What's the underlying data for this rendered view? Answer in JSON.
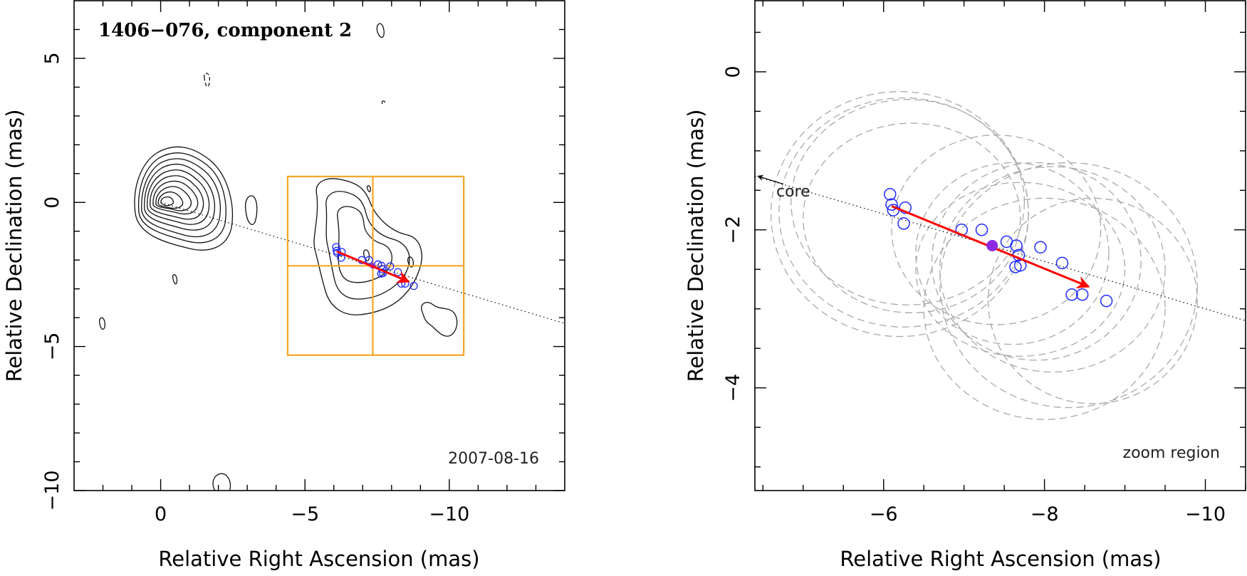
{
  "chart_data": [
    {
      "type": "scatter",
      "panel": "left",
      "title": "1406−076, component 2",
      "date_label": "2007-08-16",
      "xlabel": "Relative Right Ascension (mas)",
      "ylabel": "Relative Declination (mas)",
      "xlim": [
        3,
        -14
      ],
      "ylim": [
        -10,
        7
      ],
      "xticks": [
        0,
        -5,
        -10
      ],
      "xtick_labels": [
        "0",
        "−5",
        "−10"
      ],
      "yticks": [
        5,
        0,
        -5,
        -10
      ],
      "ytick_labels": [
        "5",
        "0",
        "−5",
        "−10"
      ],
      "zoom_box": {
        "x_min": -4.4,
        "x_max": -10.5,
        "y_min": -5.3,
        "y_max": 0.9,
        "center": [
          -7.35,
          -2.2
        ]
      },
      "trajectory_line": {
        "from": [
          0,
          0
        ],
        "to": [
          -14,
          -4.2
        ]
      },
      "motion_vector": {
        "from": [
          -6.1,
          -1.7
        ],
        "to": [
          -8.6,
          -2.75
        ]
      },
      "fitted_positions": {
        "x": [
          -6.08,
          -6.1,
          -6.12,
          -6.27,
          -6.25,
          -6.97,
          -7.22,
          -7.53,
          -7.65,
          -7.68,
          -7.64,
          -7.7,
          -7.95,
          -8.22,
          -8.34,
          -8.47,
          -8.77
        ],
        "y": [
          -1.55,
          -1.68,
          -1.75,
          -1.72,
          -1.92,
          -2.0,
          -2.0,
          -2.15,
          -2.2,
          -2.32,
          -2.47,
          -2.45,
          -2.22,
          -2.42,
          -2.82,
          -2.82,
          -2.9
        ]
      },
      "mean_position": [
        -7.35,
        -2.2
      ]
    },
    {
      "type": "scatter",
      "panel": "right",
      "annotation_core": "core",
      "annotation_zoom": "zoom region",
      "xlabel": "Relative Right Ascension (mas)",
      "ylabel": "Relative Declination (mas)",
      "xlim": [
        -4.4,
        -10.5
      ],
      "ylim": [
        -5.3,
        0.9
      ],
      "xticks": [
        -6,
        -8,
        -10
      ],
      "xtick_labels": [
        "−6",
        "−8",
        "−10"
      ],
      "yticks": [
        0,
        -2,
        -4
      ],
      "ytick_labels": [
        "0",
        "−2",
        "−4"
      ],
      "trajectory_line": {
        "from": [
          -4.4,
          -1.32
        ],
        "to": [
          -10.5,
          -3.15
        ]
      },
      "core_direction_arrow": {
        "from": [
          -4.75,
          -1.42
        ],
        "to": [
          -4.4,
          -1.32
        ]
      },
      "motion_vector": {
        "from": [
          -6.1,
          -1.7
        ],
        "to": [
          -8.55,
          -2.72
        ]
      },
      "fitted_positions": {
        "x": [
          -6.08,
          -6.1,
          -6.12,
          -6.27,
          -6.25,
          -6.97,
          -7.22,
          -7.53,
          -7.65,
          -7.68,
          -7.64,
          -7.7,
          -7.95,
          -8.22,
          -8.34,
          -8.47,
          -8.77
        ],
        "y": [
          -1.55,
          -1.68,
          -1.75,
          -1.72,
          -1.92,
          -2.0,
          -2.0,
          -2.15,
          -2.2,
          -2.32,
          -2.47,
          -2.45,
          -2.22,
          -2.42,
          -2.82,
          -2.82,
          -2.9
        ]
      },
      "mean_position": [
        -7.35,
        -2.2
      ],
      "uncertainty_ellipses": [
        {
          "cx": -6.2,
          "cy": -1.8,
          "rx": 1.6,
          "ry": 1.55
        },
        {
          "cx": -6.25,
          "cy": -1.78,
          "rx": 1.55,
          "ry": 1.45
        },
        {
          "cx": -6.3,
          "cy": -1.65,
          "rx": 1.45,
          "ry": 1.3
        },
        {
          "cx": -6.35,
          "cy": -1.85,
          "rx": 1.35,
          "ry": 1.2
        },
        {
          "cx": -7.4,
          "cy": -2.0,
          "rx": 1.3,
          "ry": 1.2
        },
        {
          "cx": -7.6,
          "cy": -2.3,
          "rx": 1.2,
          "ry": 1.15
        },
        {
          "cx": -7.9,
          "cy": -2.4,
          "rx": 1.3,
          "ry": 1.25
        },
        {
          "cx": -8.3,
          "cy": -2.7,
          "rx": 1.6,
          "ry": 1.55
        },
        {
          "cx": -8.1,
          "cy": -2.5,
          "rx": 1.4,
          "ry": 1.3
        },
        {
          "cx": -7.7,
          "cy": -2.5,
          "rx": 1.3,
          "ry": 1.1
        },
        {
          "cx": -8.0,
          "cy": -3.0,
          "rx": 1.5,
          "ry": 1.4
        },
        {
          "cx": -8.6,
          "cy": -2.9,
          "rx": 1.3,
          "ry": 1.3
        }
      ]
    }
  ],
  "colors": {
    "contour": "#111111",
    "zoom_box": "#f5a623",
    "fit_marker": "#1f2bff",
    "mean_marker": "#8a2be2",
    "vector": "#ff0000",
    "ellipse": "#a9a9a9"
  }
}
